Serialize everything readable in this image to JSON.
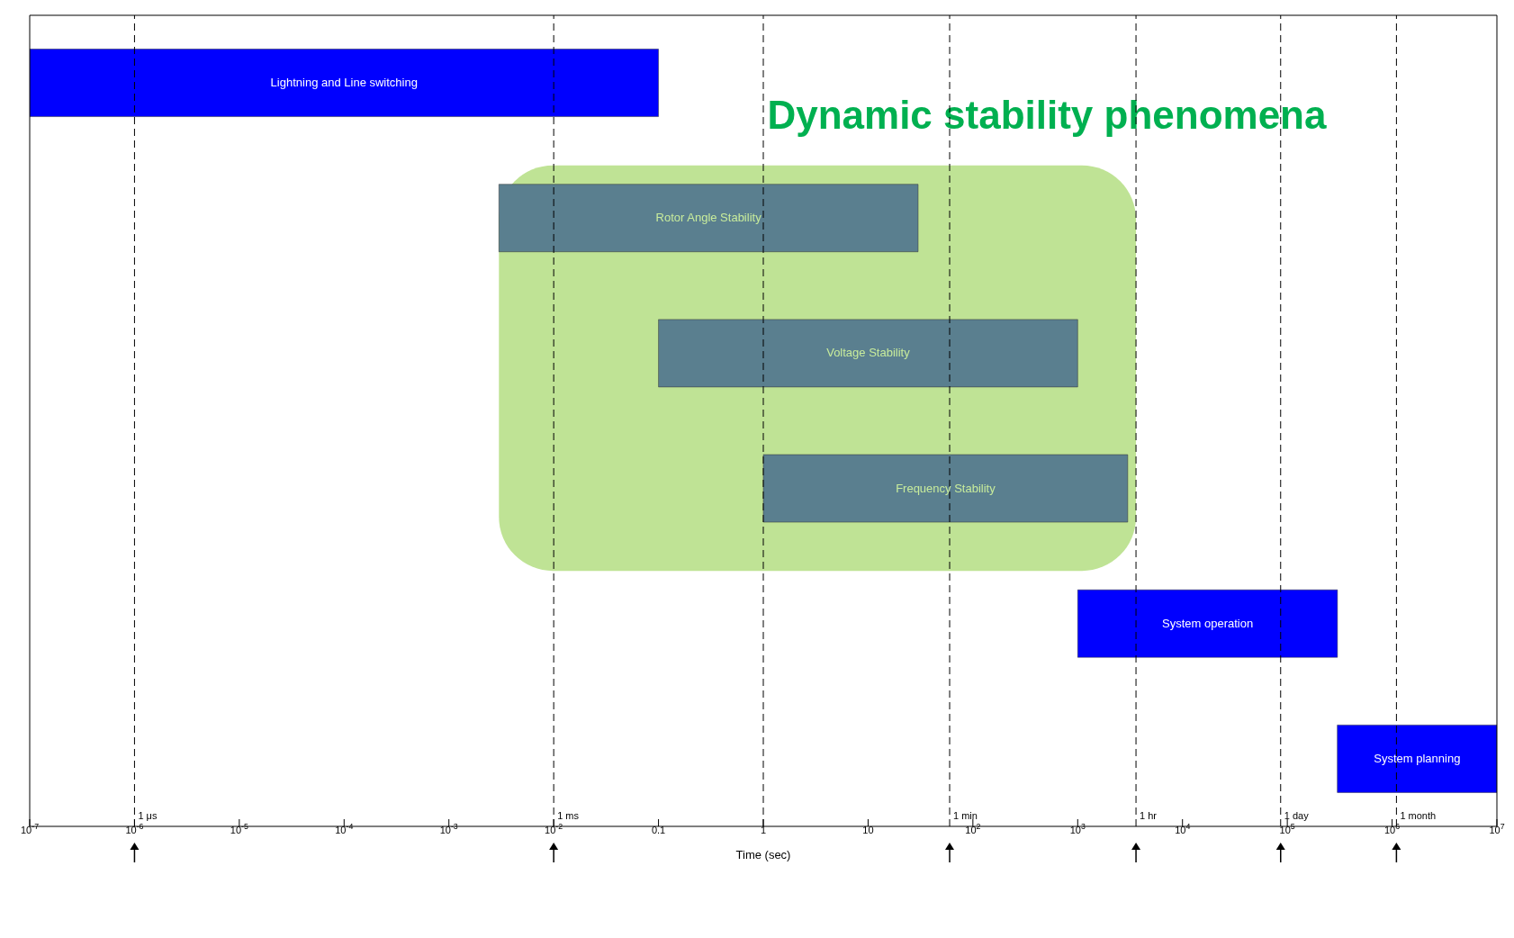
{
  "chart_data": {
    "type": "bar",
    "orientation": "horizontal",
    "log": "x",
    "legend": false,
    "tick_labels": "x",
    "xlabel": "Time (sec)",
    "categories": [
      "Lightning and Line switching",
      "Rotor Angle Stability",
      "Voltage Stability",
      "Frequency Stability",
      "System operation",
      "System planning"
    ],
    "base": [
      1e-07,
      0.003,
      0.1,
      1,
      1000,
      300000
    ],
    "values": [
      0.1,
      30,
      1000,
      3000,
      300000,
      9700000
    ],
    "colors": [
      "#0000ff",
      "#5a7f8f",
      "#5a7f8f",
      "#5a7f8f",
      "#0000ff",
      "#0000ff"
    ],
    "xlim": [
      1e-07,
      10000000.0
    ],
    "xticks": [
      {
        "value": 1e-07,
        "label": "10$^{-7}$"
      },
      {
        "value": 1e-06,
        "label": "10$^{-6}$"
      },
      {
        "value": 1e-05,
        "label": "10$^{-5}$"
      },
      {
        "value": 0.0001,
        "label": "10$^{-4}$"
      },
      {
        "value": 0.001,
        "label": "10$^{-3}$"
      },
      {
        "value": 0.01,
        "label": "10$^{-2}$"
      },
      0.1,
      1,
      10,
      {
        "value": 100,
        "label": "10$^{2}$"
      },
      {
        "value": 1000,
        "label": "10$^{3}$"
      },
      {
        "value": 10000,
        "label": "10$^{4}$"
      },
      {
        "value": 100000,
        "label": "10$^{5}$"
      },
      {
        "value": 1000000,
        "label": "10$^{6}$"
      },
      {
        "value": 10000000,
        "label": "10$^{7}$"
      }
    ],
    "ref_lines": [
      {
        "axis": "x",
        "value": 1e-06,
        "label": "1 μs",
        "line_style": "dashed"
      },
      {
        "axis": "x",
        "value": 0.01,
        "label": "1 ms",
        "line_style": "dashed"
      },
      {
        "axis": "x",
        "value": 1,
        "label": null,
        "line_style": "dashed"
      },
      {
        "axis": "x",
        "value": 60,
        "label": "1 min",
        "line_style": "dashed"
      },
      {
        "axis": "x",
        "value": 3600,
        "label": "1 hr",
        "line_style": "dashed"
      },
      {
        "axis": "x",
        "value": 86400,
        "label": "1 day",
        "line_style": "dashed"
      },
      {
        "axis": "x",
        "value": 1100000,
        "label": "1 month",
        "line_style": "dashed"
      }
    ],
    "bands": [
      {
        "axis": "x",
        "from": 0.003,
        "to": 3600,
        "label": "Dynamic stability phenomena",
        "color": "#bfe395"
      }
    ]
  }
}
